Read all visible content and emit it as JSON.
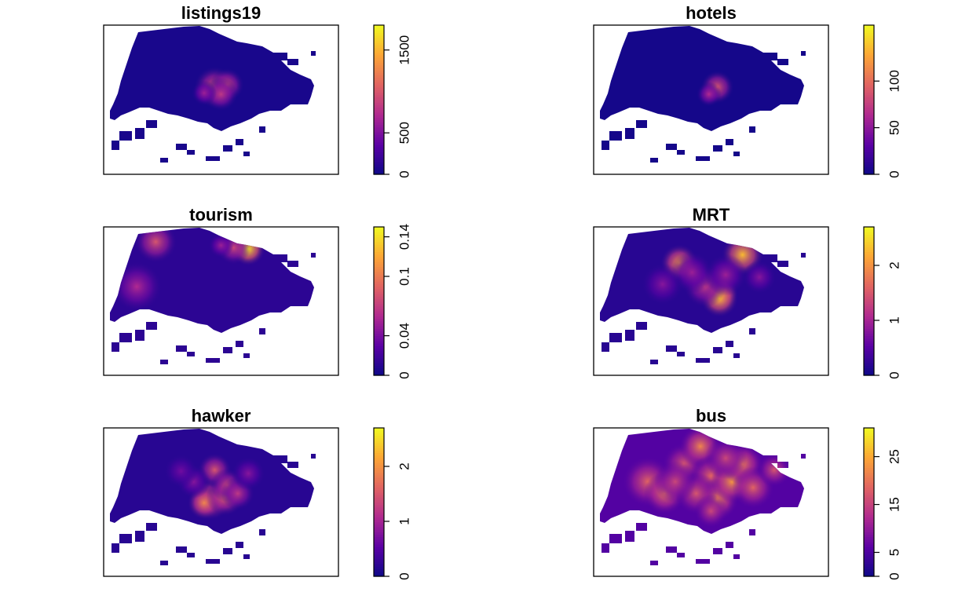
{
  "chart_data": [
    {
      "type": "heatmap",
      "title": "listings19",
      "colormap": [
        "#0d0887",
        "#5b01a5",
        "#b12a90",
        "#e16462",
        "#fca636",
        "#f0f921"
      ],
      "zlim": [
        0,
        1800
      ],
      "colorbar_ticks": [
        {
          "value": 0,
          "label": "0"
        },
        {
          "value": 500,
          "label": "500"
        },
        {
          "value": 1500,
          "label": "1500"
        }
      ],
      "hotspots": [
        {
          "cx": 0.52,
          "cy": 0.52,
          "r": 0.05,
          "level": 0.55
        },
        {
          "cx": 0.58,
          "cy": 0.5,
          "r": 0.04,
          "level": 0.5
        },
        {
          "cx": 0.55,
          "cy": 0.58,
          "r": 0.04,
          "level": 0.45
        },
        {
          "cx": 0.47,
          "cy": 0.57,
          "r": 0.03,
          "level": 0.35
        }
      ],
      "base_level": 0.03
    },
    {
      "type": "heatmap",
      "title": "hotels",
      "colormap": [
        "#0d0887",
        "#5b01a5",
        "#b12a90",
        "#e16462",
        "#fca636",
        "#f0f921"
      ],
      "zlim": [
        0,
        160
      ],
      "colorbar_ticks": [
        {
          "value": 0,
          "label": "0"
        },
        {
          "value": 50,
          "label": "50"
        },
        {
          "value": 100,
          "label": "100"
        }
      ],
      "hotspots": [
        {
          "cx": 0.58,
          "cy": 0.52,
          "r": 0.04,
          "level": 0.55
        },
        {
          "cx": 0.54,
          "cy": 0.58,
          "r": 0.03,
          "level": 0.4
        }
      ],
      "base_level": 0.02
    },
    {
      "type": "heatmap",
      "title": "tourism",
      "colormap": [
        "#0d0887",
        "#5b01a5",
        "#b12a90",
        "#e16462",
        "#fca636",
        "#f0f921"
      ],
      "zlim": [
        0,
        0.15
      ],
      "colorbar_ticks": [
        {
          "value": 0,
          "label": "0"
        },
        {
          "value": 0.04,
          "label": "0.04"
        },
        {
          "value": 0.1,
          "label": "0.1"
        },
        {
          "value": 0.14,
          "label": "0.14"
        }
      ],
      "hotspots": [
        {
          "cx": 0.24,
          "cy": 0.12,
          "r": 0.05,
          "level": 0.55
        },
        {
          "cx": 0.68,
          "cy": 0.18,
          "r": 0.04,
          "level": 0.95
        },
        {
          "cx": 0.61,
          "cy": 0.17,
          "r": 0.04,
          "level": 0.5
        },
        {
          "cx": 0.15,
          "cy": 0.5,
          "r": 0.06,
          "level": 0.4
        },
        {
          "cx": 0.55,
          "cy": 0.15,
          "r": 0.03,
          "level": 0.35
        }
      ],
      "base_level": 0.08
    },
    {
      "type": "heatmap",
      "title": "MRT",
      "colormap": [
        "#0d0887",
        "#5b01a5",
        "#b12a90",
        "#e16462",
        "#fca636",
        "#f0f921"
      ],
      "zlim": [
        0,
        2.7
      ],
      "colorbar_ticks": [
        {
          "value": 0,
          "label": "0"
        },
        {
          "value": 1,
          "label": "1"
        },
        {
          "value": 2,
          "label": "2"
        }
      ],
      "hotspots": [
        {
          "cx": 0.4,
          "cy": 0.3,
          "r": 0.045,
          "level": 0.75
        },
        {
          "cx": 0.7,
          "cy": 0.23,
          "r": 0.05,
          "level": 0.85
        },
        {
          "cx": 0.6,
          "cy": 0.55,
          "r": 0.04,
          "level": 0.7
        },
        {
          "cx": 0.59,
          "cy": 0.6,
          "r": 0.045,
          "level": 0.85
        },
        {
          "cx": 0.52,
          "cy": 0.5,
          "r": 0.05,
          "level": 0.45
        },
        {
          "cx": 0.46,
          "cy": 0.38,
          "r": 0.05,
          "level": 0.35
        },
        {
          "cx": 0.32,
          "cy": 0.48,
          "r": 0.05,
          "level": 0.3
        },
        {
          "cx": 0.62,
          "cy": 0.4,
          "r": 0.05,
          "level": 0.35
        },
        {
          "cx": 0.78,
          "cy": 0.42,
          "r": 0.04,
          "level": 0.3
        }
      ],
      "base_level": 0.07
    },
    {
      "type": "heatmap",
      "title": "hawker",
      "colormap": [
        "#0d0887",
        "#5b01a5",
        "#b12a90",
        "#e16462",
        "#fca636",
        "#f0f921"
      ],
      "zlim": [
        0,
        2.7
      ],
      "colorbar_ticks": [
        {
          "value": 0,
          "label": "0"
        },
        {
          "value": 1,
          "label": "1"
        },
        {
          "value": 2,
          "label": "2"
        }
      ],
      "hotspots": [
        {
          "cx": 0.5,
          "cy": 0.6,
          "r": 0.05,
          "level": 0.65
        },
        {
          "cx": 0.47,
          "cy": 0.63,
          "r": 0.04,
          "level": 0.7
        },
        {
          "cx": 0.57,
          "cy": 0.58,
          "r": 0.045,
          "level": 0.6
        },
        {
          "cx": 0.52,
          "cy": 0.35,
          "r": 0.04,
          "level": 0.55
        },
        {
          "cx": 0.58,
          "cy": 0.48,
          "r": 0.04,
          "level": 0.5
        },
        {
          "cx": 0.63,
          "cy": 0.55,
          "r": 0.04,
          "level": 0.45
        },
        {
          "cx": 0.42,
          "cy": 0.45,
          "r": 0.04,
          "level": 0.3
        },
        {
          "cx": 0.36,
          "cy": 0.36,
          "r": 0.04,
          "level": 0.25
        },
        {
          "cx": 0.68,
          "cy": 0.38,
          "r": 0.04,
          "level": 0.3
        }
      ],
      "base_level": 0.07
    },
    {
      "type": "heatmap",
      "title": "bus",
      "colormap": [
        "#0d0887",
        "#5b01a5",
        "#b12a90",
        "#e16462",
        "#fca636",
        "#f0f921"
      ],
      "zlim": [
        0,
        31
      ],
      "colorbar_ticks": [
        {
          "value": 0,
          "label": "0"
        },
        {
          "value": 5,
          "label": "5"
        },
        {
          "value": 15,
          "label": "15"
        },
        {
          "value": 25,
          "label": "25"
        }
      ],
      "hotspots": [
        {
          "cx": 0.25,
          "cy": 0.45,
          "r": 0.06,
          "level": 0.6
        },
        {
          "cx": 0.33,
          "cy": 0.55,
          "r": 0.05,
          "level": 0.65
        },
        {
          "cx": 0.42,
          "cy": 0.3,
          "r": 0.05,
          "level": 0.55
        },
        {
          "cx": 0.5,
          "cy": 0.15,
          "r": 0.05,
          "level": 0.7
        },
        {
          "cx": 0.55,
          "cy": 0.4,
          "r": 0.05,
          "level": 0.6
        },
        {
          "cx": 0.58,
          "cy": 0.6,
          "r": 0.05,
          "level": 0.7
        },
        {
          "cx": 0.65,
          "cy": 0.45,
          "r": 0.05,
          "level": 0.75
        },
        {
          "cx": 0.7,
          "cy": 0.3,
          "r": 0.05,
          "level": 0.65
        },
        {
          "cx": 0.75,
          "cy": 0.5,
          "r": 0.05,
          "level": 0.6
        },
        {
          "cx": 0.85,
          "cy": 0.35,
          "r": 0.04,
          "level": 0.55
        },
        {
          "cx": 0.48,
          "cy": 0.55,
          "r": 0.05,
          "level": 0.55
        },
        {
          "cx": 0.38,
          "cy": 0.45,
          "r": 0.05,
          "level": 0.5
        },
        {
          "cx": 0.62,
          "cy": 0.25,
          "r": 0.05,
          "level": 0.5
        },
        {
          "cx": 0.55,
          "cy": 0.7,
          "r": 0.04,
          "level": 0.5
        }
      ],
      "base_level": 0.18
    }
  ]
}
